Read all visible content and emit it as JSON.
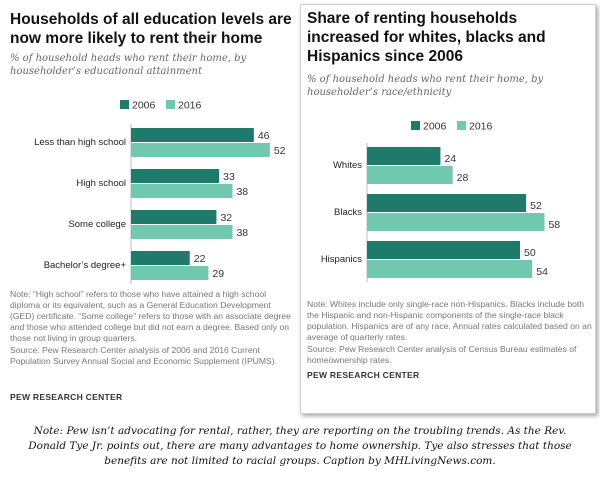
{
  "colors": {
    "s2006": "#1e7a6a",
    "s2016": "#72c8ae"
  },
  "left": {
    "title": "Households of all education levels are now more likely to rent their home",
    "subtitle": "% of household heads who rent their home, by householder’s educational attainment",
    "note": "Note: “High school” refers to those who have attained a high school diploma or its equivalent, such as a General Education Development (GED) certificate. “Some college” refers to those with an associate degree and those who attended college but did not earn a degree. Based only on those not living in group quarters.",
    "source": "Source: Pew Research Center analysis of 2006 and 2016 Current Population Survey Annual Social and Economic Supplement (IPUMS).",
    "org": "PEW RESEARCH CENTER"
  },
  "right": {
    "title": "Share of renting households increased for whites, blacks and Hispanics since 2006",
    "subtitle": "% of household heads who rent their home, by householder’s race/ethnicity",
    "note": "Note: Whites include only single-race non-Hispanics. Blacks include both the Hispanic and non-Hispanic components of the single-race black population. Hispanics are of any race. Annual rates calculated based on an average of quarterly rates.",
    "source": "Source: Pew Research Center analysis of Census Bureau estimates of homeownership rates.",
    "org": "PEW RESEARCH CENTER"
  },
  "caption": "Note: Pew isn’t advocating for rental, rather, they are reporting on the troubling trends. As the Rev. Donald Tye Jr. points out, there are many advantages to home ownership. Tye also stresses that those benefits are not limited to racial groups. Caption by MHLivingNews.com.",
  "chart_data": [
    {
      "type": "bar",
      "orientation": "horizontal",
      "title": "Households of all education levels are now more likely to rent their home",
      "subtitle": "% of household heads who rent their home, by householder’s educational attainment",
      "legend_placement": "top",
      "categories": [
        "Less than high school",
        "High school",
        "Some college",
        "Bachelor’s degree+"
      ],
      "series": [
        {
          "name": "2006",
          "values": [
            46,
            33,
            32,
            22
          ]
        },
        {
          "name": "2016",
          "values": [
            52,
            38,
            38,
            29
          ]
        }
      ],
      "xlim": [
        0,
        60
      ],
      "grid": false
    },
    {
      "type": "bar",
      "orientation": "horizontal",
      "title": "Share of renting households increased for whites, blacks and Hispanics since 2006",
      "subtitle": "% of household heads who rent their home, by householder’s race/ethnicity",
      "legend_placement": "top",
      "categories": [
        "Whites",
        "Blacks",
        "Hispanics"
      ],
      "series": [
        {
          "name": "2006",
          "values": [
            24,
            52,
            50
          ]
        },
        {
          "name": "2016",
          "values": [
            28,
            58,
            54
          ]
        }
      ],
      "xlim": [
        0,
        60
      ],
      "grid": false
    }
  ]
}
